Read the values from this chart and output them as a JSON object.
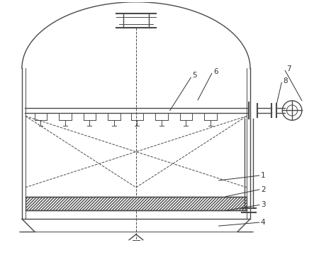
{
  "bg_color": "#ffffff",
  "line_color": "#4a4a4a",
  "label_color": "#333333",
  "fig_width": 4.43,
  "fig_height": 3.73,
  "dpi": 100
}
